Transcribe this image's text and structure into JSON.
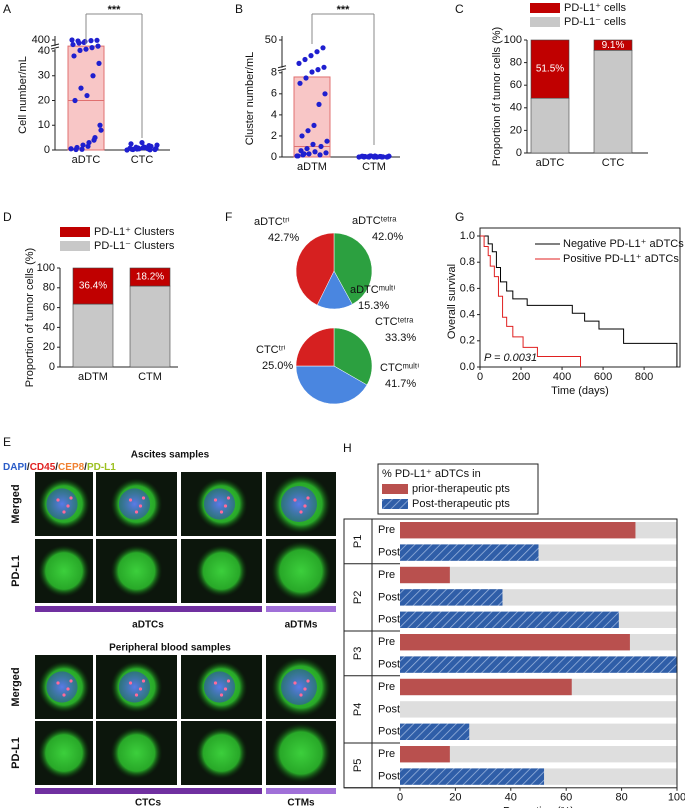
{
  "chart_data": [
    {
      "panel": "A",
      "type": "box-scatter",
      "ylabel": "Cell number/mL",
      "categories": [
        "aDTC",
        "CTC"
      ],
      "points": [
        [
          0.5,
          1,
          2,
          3,
          5,
          8,
          0.2,
          0.3,
          1.5,
          4,
          10,
          20,
          25,
          22,
          30,
          35,
          38,
          60,
          100,
          150,
          200,
          250,
          300,
          350,
          380,
          390,
          400,
          370,
          320
        ],
        [
          0,
          0.2,
          0.5,
          1,
          1.5,
          2,
          0.3,
          0.8,
          1.2,
          0.1,
          0.6,
          2.5,
          0.4,
          0.9,
          1.8,
          0.2,
          0.7,
          1.1,
          3,
          0.5
        ]
      ],
      "box": {
        "low": 0,
        "median": 20,
        "high": 200
      },
      "ylim": [
        0,
        400
      ],
      "ybreak": 40,
      "yticks": [
        0,
        10,
        20,
        30,
        40,
        400
      ],
      "color": "#1f1fcf",
      "box_color": "#f8c6c6",
      "significance": "***"
    },
    {
      "panel": "B",
      "type": "box-scatter",
      "ylabel": "Cluster number/mL",
      "categories": [
        "aDTM",
        "CTM"
      ],
      "points": [
        [
          0.1,
          0.2,
          0.3,
          0.5,
          1,
          1.5,
          2,
          2.5,
          3,
          0.2,
          0.4,
          0.6,
          0.8,
          1.2,
          5,
          6,
          7,
          7.5,
          9,
          12,
          15,
          20,
          25,
          30,
          35,
          40,
          0.1,
          0.3
        ],
        [
          0,
          0.05,
          0.1,
          0,
          0.02,
          0.08,
          0,
          0.1,
          0.05,
          0,
          0.03,
          0.06,
          0,
          0.1,
          0.04,
          0,
          0.07,
          0.02,
          0,
          0.05
        ]
      ],
      "box": {
        "low": 0,
        "median": 1,
        "high": 7.6
      },
      "ylim": [
        0,
        50
      ],
      "ybreak": 8,
      "yticks": [
        0,
        2,
        4,
        6,
        8,
        50
      ],
      "color": "#1f1fcf",
      "box_color": "#f8c6c6",
      "significance": "***"
    },
    {
      "panel": "C",
      "type": "stacked-bar",
      "ylabel": "Proportion of tumor cells (%)",
      "categories": [
        "aDTC",
        "CTC"
      ],
      "series": [
        {
          "name": "PD-L1⁺ cells",
          "color": "#c00000",
          "values": [
            51.5,
            9.1
          ],
          "value_labels": [
            "51.5%",
            "9.1%"
          ]
        },
        {
          "name": "PD-L1⁻ cells",
          "color": "#c8c8c8",
          "values": [
            48.5,
            90.9
          ]
        }
      ],
      "ylim": [
        0,
        100
      ],
      "yticks": [
        0,
        20,
        40,
        60,
        80,
        100
      ]
    },
    {
      "panel": "D",
      "type": "stacked-bar",
      "ylabel": "Proportion of tumor cells (%)",
      "categories": [
        "aDTM",
        "CTM"
      ],
      "series": [
        {
          "name": "PD-L1⁺ Clusters",
          "color": "#c00000",
          "values": [
            36.4,
            18.2
          ],
          "value_labels": [
            "36.4%",
            "18.2%"
          ]
        },
        {
          "name": "PD-L1⁻ Clusters",
          "color": "#c8c8c8",
          "values": [
            63.6,
            81.8
          ]
        }
      ],
      "ylim": [
        0,
        100
      ],
      "yticks": [
        0,
        20,
        40,
        60,
        80,
        100
      ]
    },
    {
      "panel": "F",
      "type": "pie",
      "pies": [
        {
          "categories": [
            "aDTCᵗʳⁱ",
            "aDTCᵗᵉᵗʳᵃ",
            "aDTCᵐᵘˡᵗⁱ"
          ],
          "values": [
            42.7,
            42.0,
            15.3
          ],
          "value_labels": [
            "42.7%",
            "42.0%",
            "15.3%"
          ],
          "colors": [
            "#d62020",
            "#2ca040",
            "#4a86e0"
          ]
        },
        {
          "categories": [
            "CTCᵗʳⁱ",
            "CTCᵗᵉᵗʳᵃ",
            "CTCᵐᵘˡᵗⁱ"
          ],
          "values": [
            25.0,
            33.3,
            41.7
          ],
          "value_labels": [
            "25.0%",
            "33.3%",
            "41.7%"
          ],
          "colors": [
            "#d62020",
            "#2ca040",
            "#4a86e0"
          ]
        }
      ]
    },
    {
      "panel": "G",
      "type": "line",
      "xlabel": "Time (days)",
      "ylabel": "Overall survival",
      "series": [
        {
          "name": "Negative PD-L1⁺ aDTCs",
          "color": "#000000",
          "x": [
            0,
            40,
            40,
            60,
            60,
            80,
            80,
            100,
            100,
            130,
            130,
            160,
            160,
            230,
            230,
            450,
            450,
            510,
            510,
            580,
            580,
            700,
            700,
            960,
            960
          ],
          "values": [
            1,
            1,
            0.94,
            0.94,
            0.88,
            0.88,
            0.76,
            0.76,
            0.65,
            0.65,
            0.58,
            0.58,
            0.52,
            0.52,
            0.47,
            0.47,
            0.41,
            0.41,
            0.35,
            0.35,
            0.29,
            0.29,
            0.18,
            0.18,
            0
          ]
        },
        {
          "name": "Positive PD-L1⁺ aDTCs",
          "color": "#e02020",
          "x": [
            0,
            20,
            20,
            40,
            40,
            50,
            50,
            70,
            70,
            90,
            90,
            110,
            110,
            130,
            130,
            160,
            160,
            210,
            210,
            280,
            280,
            490,
            490
          ],
          "values": [
            1,
            1,
            0.92,
            0.92,
            0.85,
            0.85,
            0.77,
            0.77,
            0.69,
            0.69,
            0.54,
            0.54,
            0.38,
            0.38,
            0.31,
            0.31,
            0.23,
            0.23,
            0.15,
            0.15,
            0.08,
            0.08,
            0
          ]
        }
      ],
      "xlim": [
        0,
        975
      ],
      "xticks": [
        0,
        200,
        400,
        600,
        800
      ],
      "ylim": [
        0,
        1
      ],
      "yticks": [
        {
          "value": 0,
          "label": "0.0"
        },
        {
          "value": 0.2,
          "label": "0.2"
        },
        {
          "value": 0.4,
          "label": "0.4"
        },
        {
          "value": 0.6,
          "label": "0.6"
        },
        {
          "value": 0.8,
          "label": "0.8"
        },
        {
          "value": 1,
          "label": "1.0"
        }
      ],
      "annotation": "P = 0.0031"
    },
    {
      "panel": "H",
      "type": "hbar",
      "legend_title": "% PD-L1⁺ aDTCs in",
      "series": [
        {
          "name": "prior-therapeutic pts",
          "color": "#b9504e"
        },
        {
          "name": "Post-therapeutic pts",
          "color": "#2f5ea8"
        }
      ],
      "groups": [
        {
          "name": "P1",
          "rows": [
            {
              "label": "Pre",
              "series": 0,
              "value": 85
            },
            {
              "label": "Post",
              "series": 1,
              "value": 50
            }
          ]
        },
        {
          "name": "P2",
          "rows": [
            {
              "label": "Pre",
              "series": 0,
              "value": 18
            },
            {
              "label": "Post",
              "series": 1,
              "value": 37
            },
            {
              "label": "Post",
              "series": 1,
              "value": 79
            }
          ]
        },
        {
          "name": "P3",
          "rows": [
            {
              "label": "Pre",
              "series": 0,
              "value": 83
            },
            {
              "label": "Post",
              "series": 1,
              "value": 100
            }
          ]
        },
        {
          "name": "P4",
          "rows": [
            {
              "label": "Pre",
              "series": 0,
              "value": 62
            },
            {
              "label": "Post",
              "series": 1,
              "value": 0
            },
            {
              "label": "Post",
              "series": 1,
              "value": 25
            }
          ]
        },
        {
          "name": "P5",
          "rows": [
            {
              "label": "Pre",
              "series": 0,
              "value": 18
            },
            {
              "label": "Post",
              "series": 1,
              "value": 52
            }
          ]
        }
      ],
      "xlim": [
        0,
        100
      ],
      "xticks": [
        0,
        20,
        40,
        60,
        80,
        100
      ],
      "xlabel": "Proportion (%)"
    }
  ],
  "figure_e": {
    "panel": "E",
    "stains": [
      "DAPI",
      "/",
      "CD45",
      "/",
      "CEP8",
      "/",
      "PD-L1"
    ],
    "stain_colors": [
      "#2a5cc8",
      "#222222",
      "#e02020",
      "#222222",
      "#f08030",
      "#222222",
      "#9cc020"
    ],
    "sections": [
      {
        "title": "Ascites samples",
        "rows": [
          "Merged",
          "PD-L1"
        ],
        "groups": [
          "aDTCs",
          "aDTMs"
        ]
      },
      {
        "title": "Peripheral blood samples",
        "rows": [
          "Merged",
          "PD-L1"
        ],
        "groups": [
          "CTCs",
          "CTMs"
        ]
      }
    ]
  }
}
